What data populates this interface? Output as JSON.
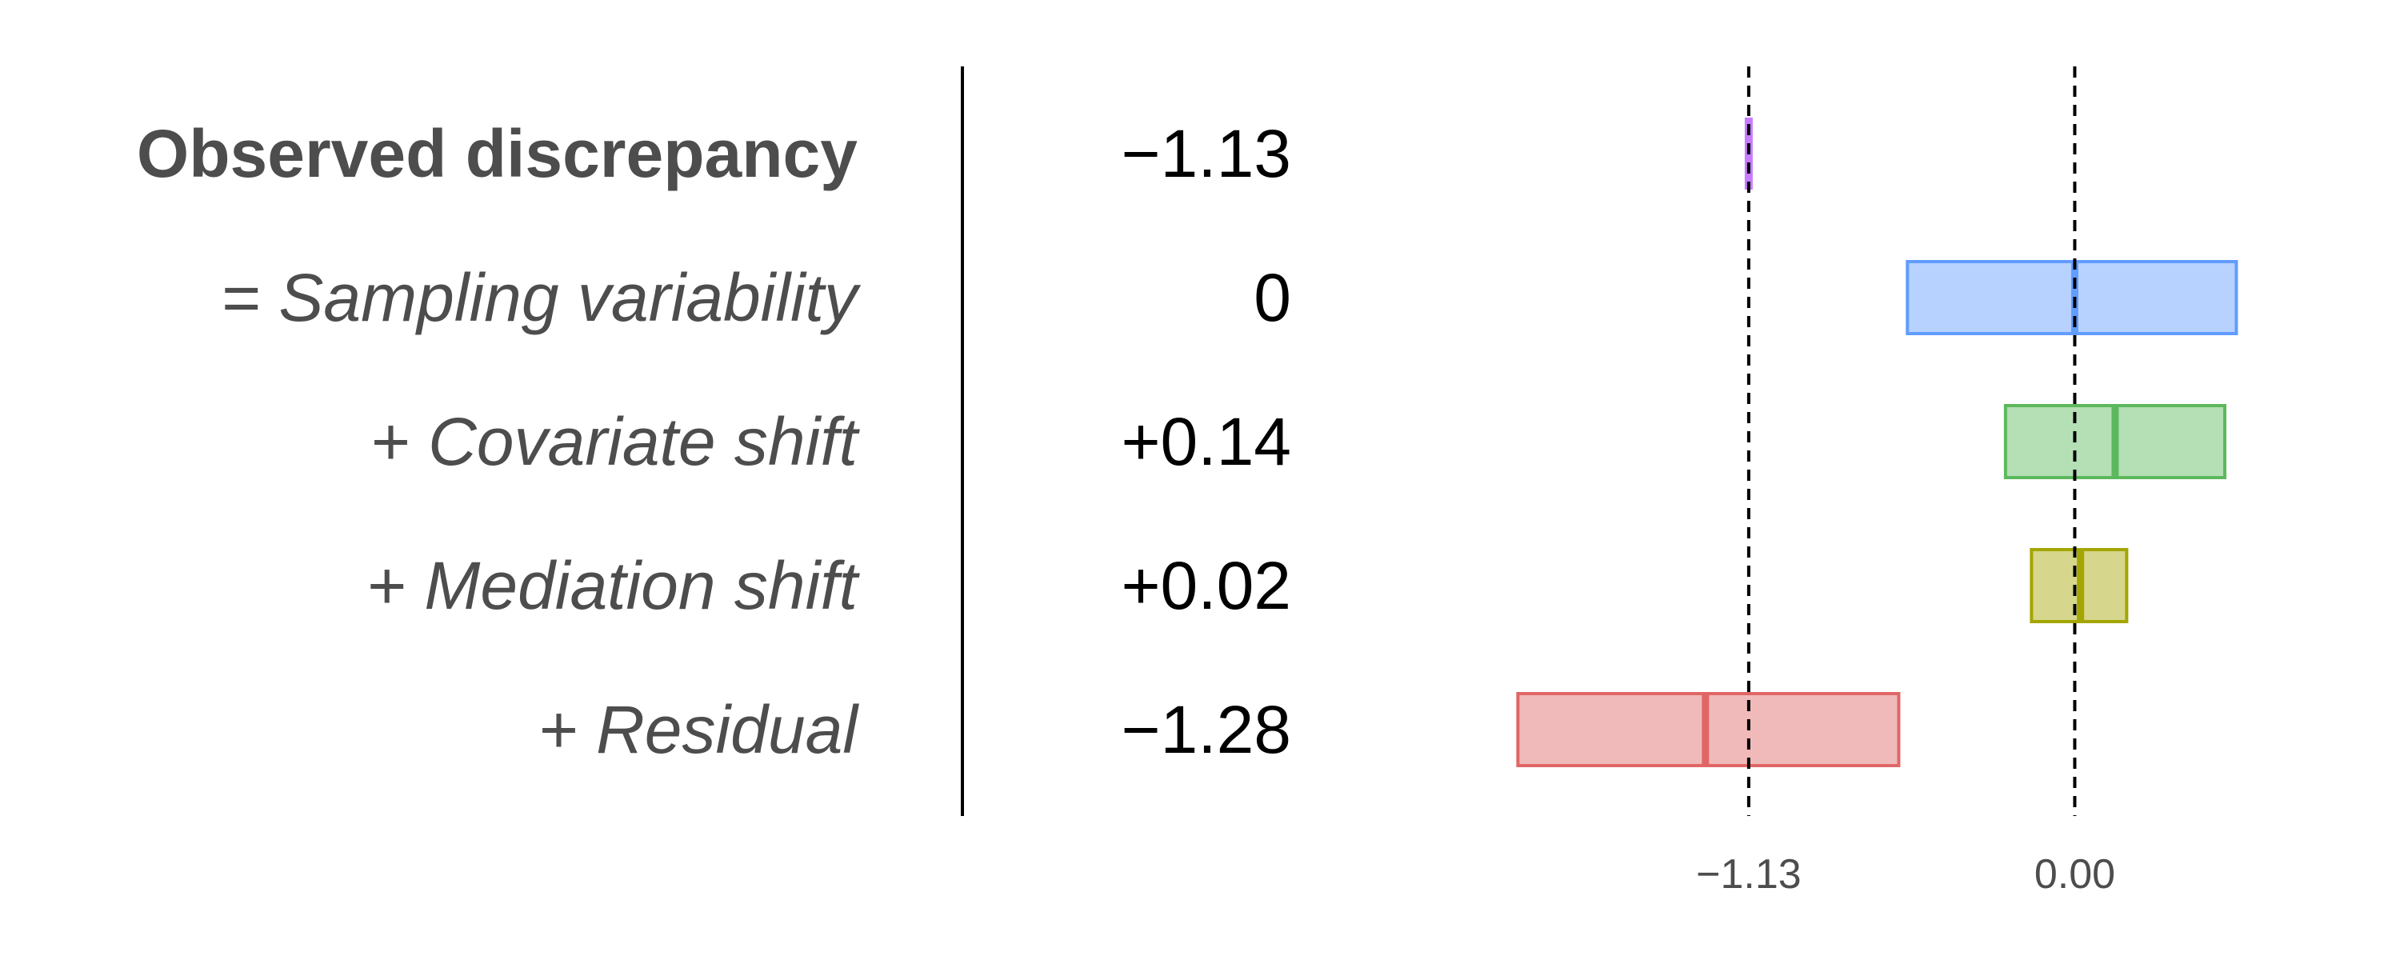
{
  "chart_data": {
    "type": "bar",
    "rows": [
      {
        "label": "Observed discrepancy",
        "value_label": "−1.13",
        "estimate": -1.13,
        "lower": -1.13,
        "upper": -1.13,
        "color": "#c77cff",
        "style": "bold"
      },
      {
        "label": "= Sampling variability",
        "value_label": "0",
        "estimate": 0.0,
        "lower": -0.58,
        "upper": 0.56,
        "color": "#619cff",
        "style": "italic"
      },
      {
        "label": "+ Covariate shift",
        "value_label": "+0.14",
        "estimate": 0.14,
        "lower": -0.24,
        "upper": 0.52,
        "color": "#5cb85c",
        "style": "italic"
      },
      {
        "label": "+ Mediation shift",
        "value_label": "+0.02",
        "estimate": 0.02,
        "lower": -0.15,
        "upper": 0.18,
        "color": "#a3a500",
        "style": "italic"
      },
      {
        "label": "+ Residual",
        "value_label": "−1.28",
        "estimate": -1.28,
        "lower": -1.93,
        "upper": -0.61,
        "color": "#e06666",
        "style": "italic"
      }
    ],
    "reference_lines": [
      -1.13,
      0.0
    ],
    "x_ticks": [
      {
        "value": -1.13,
        "label": "−1.13"
      },
      {
        "value": 0.0,
        "label": "0.00"
      }
    ],
    "xlim": [
      -2.2,
      0.85
    ],
    "grid": false,
    "legend": "none"
  }
}
